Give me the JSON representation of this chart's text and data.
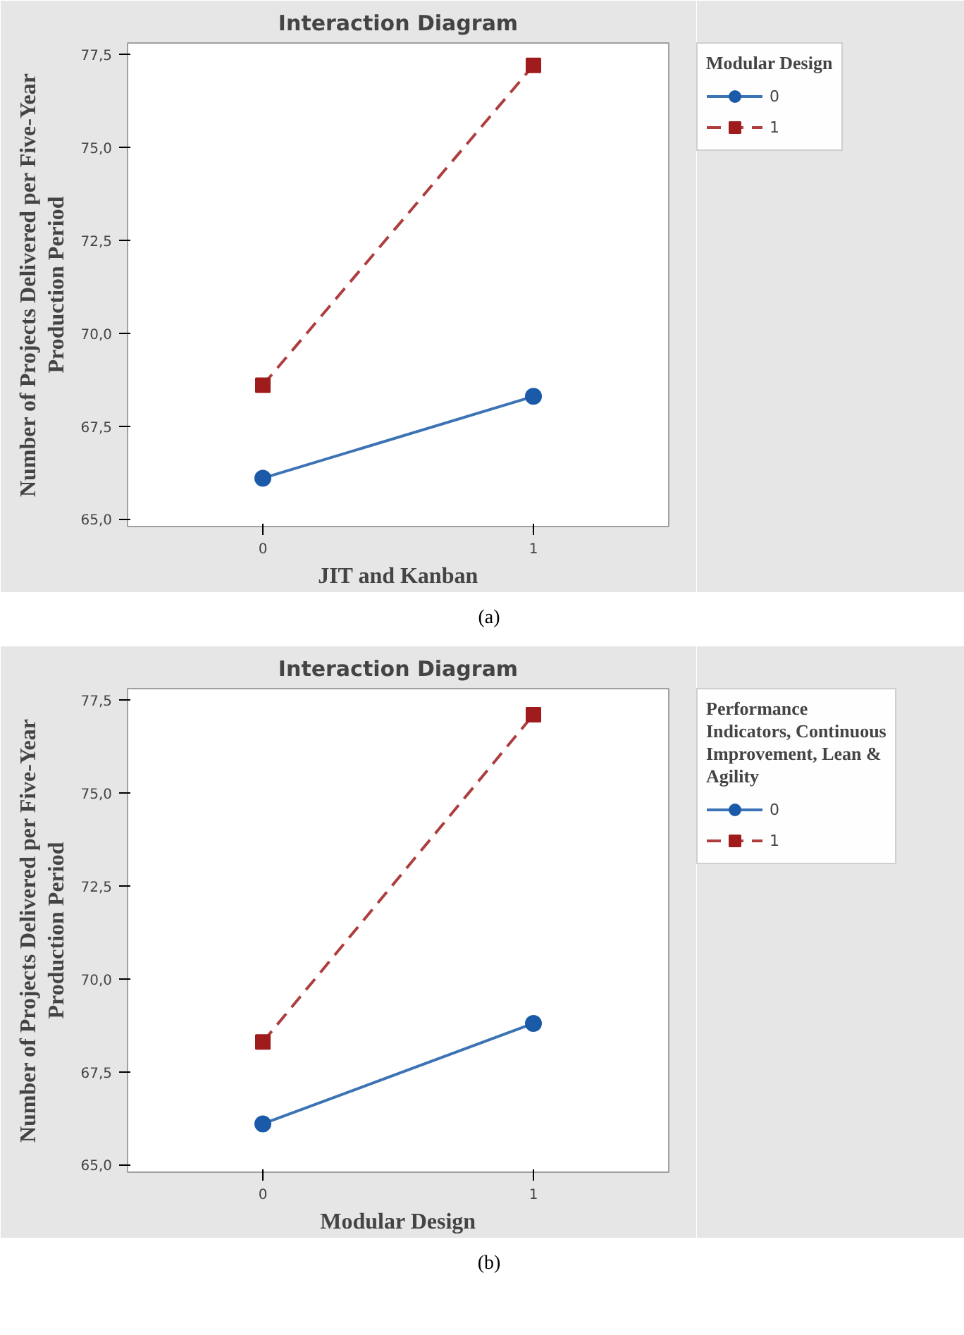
{
  "chart_data": [
    {
      "type": "line",
      "title": "Interaction Diagram",
      "xlabel": "JIT and Kanban",
      "ylabel": "Number of Projects Delivered per Five-Year Production Period",
      "legend_title": "Modular Design",
      "legend": "right",
      "categories": [
        "0",
        "1"
      ],
      "ylim": [
        64.8,
        77.8
      ],
      "yticks": [
        {
          "value": 65,
          "label": "65,0"
        },
        {
          "value": 67.5,
          "label": "67,5"
        },
        {
          "value": 70,
          "label": "70,0"
        },
        {
          "value": 72.5,
          "label": "72,5"
        },
        {
          "value": 75,
          "label": "75,0"
        },
        {
          "value": 77.5,
          "label": "77,5"
        }
      ],
      "grid": false,
      "annotations": [
        "(a)"
      ],
      "series": [
        {
          "name": "0",
          "color": "#1a5aa8",
          "values": [
            66.1,
            68.3
          ],
          "marker": "circle",
          "line_style": "solid"
        },
        {
          "name": "1",
          "color": "#a01c1c",
          "values": [
            68.6,
            77.2
          ],
          "marker": "square",
          "line_style": "dashed"
        }
      ]
    },
    {
      "type": "line",
      "title": "Interaction Diagram",
      "xlabel": "Modular Design",
      "ylabel": "Number of Projects Delivered per Five-Year Production Period",
      "legend_title": "Performance Indicators, Continuous Improvement, Lean & Agility",
      "legend": "right",
      "categories": [
        "0",
        "1"
      ],
      "ylim": [
        64.8,
        77.8
      ],
      "yticks": [
        {
          "value": 65,
          "label": "65,0"
        },
        {
          "value": 67.5,
          "label": "67,5"
        },
        {
          "value": 70,
          "label": "70,0"
        },
        {
          "value": 72.5,
          "label": "72,5"
        },
        {
          "value": 75,
          "label": "75,0"
        },
        {
          "value": 77.5,
          "label": "77,5"
        }
      ],
      "grid": false,
      "annotations": [
        "(b)"
      ],
      "series": [
        {
          "name": "0",
          "color": "#1a5aa8",
          "values": [
            66.1,
            68.8
          ],
          "marker": "circle",
          "line_style": "solid"
        },
        {
          "name": "1",
          "color": "#a01c1c",
          "values": [
            68.3,
            77.1
          ],
          "marker": "square",
          "line_style": "dashed"
        }
      ]
    }
  ]
}
